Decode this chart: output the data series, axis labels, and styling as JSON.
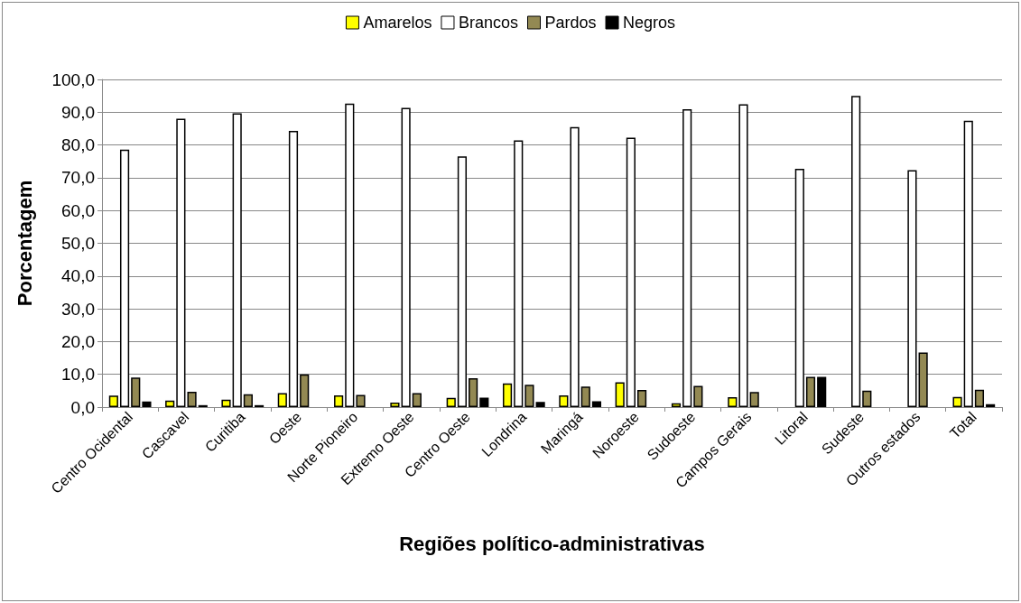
{
  "chart_data": {
    "type": "bar",
    "xlabel": "Regiões político-administrativas",
    "ylabel": "Porcentagem",
    "categories": [
      "Centro Ocidental",
      "Cascavel",
      "Curitiba",
      "Oeste",
      "Norte Pioneiro",
      "Extremo Oeste",
      "Centro Oeste",
      "Londrina",
      "Maringá",
      "Noroeste",
      "Sudoeste",
      "Campos Gerais",
      "Litoral",
      "Sudeste",
      "Outros estados",
      "Total"
    ],
    "series": [
      {
        "name": "Amarelos",
        "color": "#ffff00",
        "values": [
          3.5,
          2.0,
          2.3,
          4.3,
          3.6,
          1.4,
          2.8,
          7.2,
          3.6,
          7.6,
          1.2,
          3.0,
          null,
          null,
          null,
          3.1
        ]
      },
      {
        "name": "Brancos",
        "color": "#ffffff",
        "values": [
          78.6,
          88.0,
          89.7,
          84.3,
          92.6,
          91.3,
          76.5,
          81.4,
          85.5,
          82.2,
          90.9,
          92.4,
          72.7,
          95.0,
          72.3,
          87.4
        ]
      },
      {
        "name": "Pardos",
        "color": "#938953",
        "values": [
          9.0,
          4.7,
          3.9,
          10.0,
          3.7,
          4.3,
          8.8,
          6.8,
          6.3,
          5.2,
          6.5,
          4.6,
          9.2,
          5.0,
          16.7,
          5.3
        ]
      },
      {
        "name": "Negros",
        "color": "#000000",
        "values": [
          1.7,
          0.6,
          0.6,
          null,
          null,
          null,
          2.9,
          1.6,
          1.8,
          null,
          null,
          null,
          9.2,
          null,
          null,
          0.9
        ]
      }
    ],
    "ylim": [
      0,
      100
    ],
    "yticks": [
      {
        "value": 0,
        "label": "0,0"
      },
      {
        "value": 10,
        "label": "10,0"
      },
      {
        "value": 20,
        "label": "20,0"
      },
      {
        "value": 30,
        "label": "30,0"
      },
      {
        "value": 40,
        "label": "40,0"
      },
      {
        "value": 50,
        "label": "50,0"
      },
      {
        "value": 60,
        "label": "60,0"
      },
      {
        "value": 70,
        "label": "70,0"
      },
      {
        "value": 80,
        "label": "80,0"
      },
      {
        "value": 90,
        "label": "90,0"
      },
      {
        "value": 100,
        "label": "100,0"
      }
    ],
    "grid": "y",
    "legend": "top"
  }
}
